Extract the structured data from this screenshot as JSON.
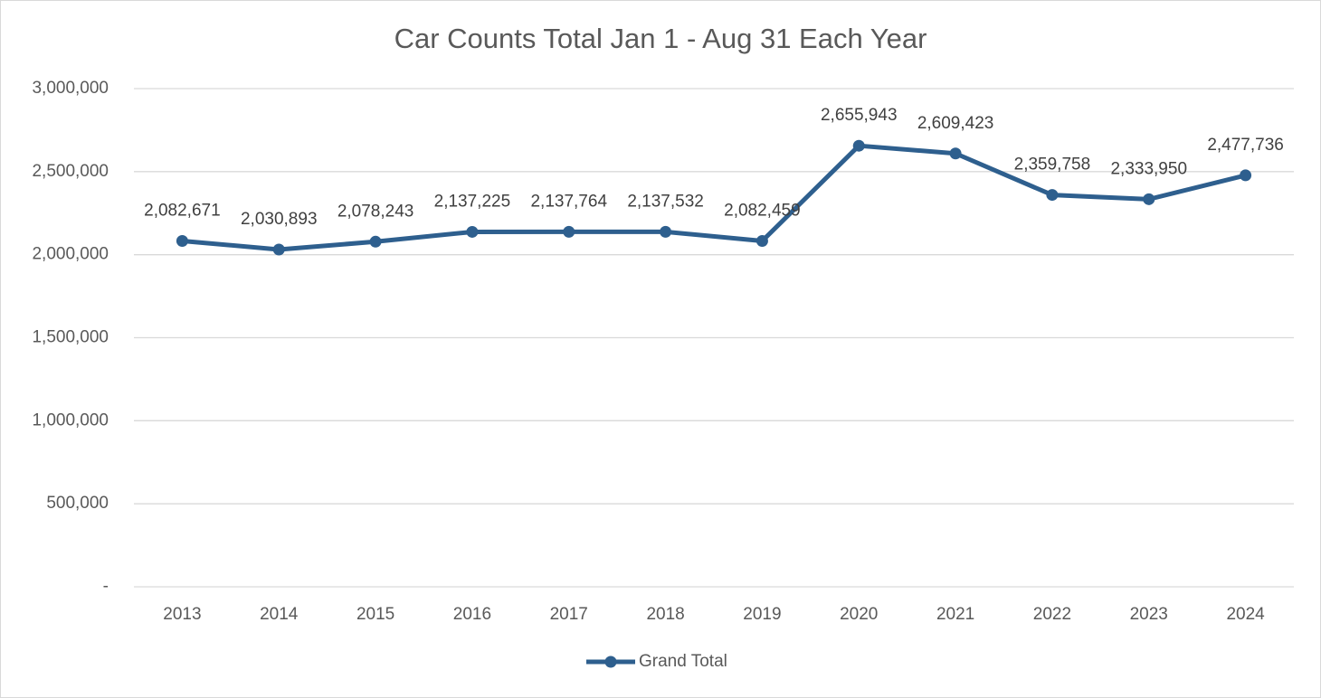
{
  "chart_data": {
    "type": "line",
    "title": "Car Counts Total Jan 1 - Aug 31 Each Year",
    "categories": [
      "2013",
      "2014",
      "2015",
      "2016",
      "2017",
      "2018",
      "2019",
      "2020",
      "2021",
      "2022",
      "2023",
      "2024"
    ],
    "series": [
      {
        "name": "Grand Total",
        "color": "#2e5f8e",
        "values": [
          2082671,
          2030893,
          2078243,
          2137225,
          2137764,
          2137532,
          2082459,
          2655943,
          2609423,
          2359758,
          2333950,
          2477736
        ],
        "value_labels": [
          "2,082,671",
          "2,030,893",
          "2,078,243",
          "2,137,225",
          "2,137,764",
          "2,137,532",
          "2,082,459",
          "2,655,943",
          "2,609,423",
          "2,359,758",
          "2,333,950",
          "2,477,736"
        ]
      }
    ],
    "ylim": [
      0,
      3000000
    ],
    "yticks": [
      {
        "value": 0,
        "label": "-"
      },
      {
        "value": 500000,
        "label": "500,000"
      },
      {
        "value": 1000000,
        "label": "1,000,000"
      },
      {
        "value": 1500000,
        "label": "1,500,000"
      },
      {
        "value": 2000000,
        "label": "2,000,000"
      },
      {
        "value": 2500000,
        "label": "2,500,000"
      },
      {
        "value": 3000000,
        "label": "3,000,000"
      }
    ],
    "grid": true,
    "legend": "bottom"
  }
}
